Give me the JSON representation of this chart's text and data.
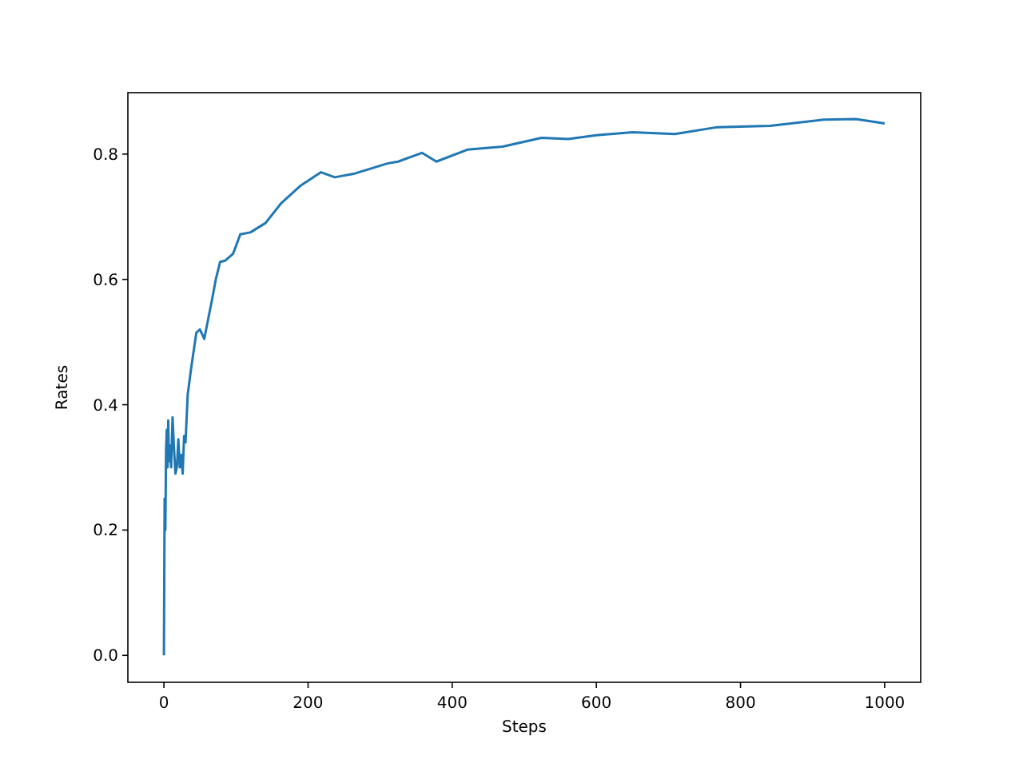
{
  "chart_data": {
    "type": "line",
    "xlabel": "Steps",
    "ylabel": "Rates",
    "xlim": [
      -50,
      1050
    ],
    "ylim": [
      -0.043,
      0.898
    ],
    "xticks": [
      0,
      200,
      400,
      600,
      800,
      1000
    ],
    "yticks": [
      {
        "value": 0,
        "label": "0.0"
      },
      0.2,
      0.4,
      0.6,
      0.8
    ],
    "series": [
      {
        "color": "#1f77b4",
        "x": [
          0,
          1,
          2,
          3,
          4,
          5,
          6,
          7,
          8,
          10,
          12,
          14,
          16,
          18,
          20,
          22,
          24,
          26,
          28,
          30,
          33,
          38,
          45,
          50,
          56,
          62,
          67,
          72,
          78,
          85,
          96,
          106,
          120,
          141,
          163,
          189,
          218,
          237,
          265,
          310,
          325,
          358,
          378,
          421,
          470,
          524,
          561,
          600,
          650,
          709,
          768,
          841,
          915,
          960,
          1000
        ],
        "values": [
          0,
          0.25,
          0.2,
          0.33,
          0.36,
          0.3,
          0.375,
          0.31,
          0.335,
          0.3,
          0.38,
          0.33,
          0.29,
          0.3,
          0.345,
          0.3,
          0.32,
          0.29,
          0.35,
          0.34,
          0.416,
          0.46,
          0.515,
          0.52,
          0.505,
          0.54,
          0.569,
          0.6,
          0.628,
          0.63,
          0.641,
          0.672,
          0.675,
          0.69,
          0.722,
          0.749,
          0.771,
          0.763,
          0.769,
          0.785,
          0.788,
          0.802,
          0.788,
          0.807,
          0.812,
          0.826,
          0.824,
          0.83,
          0.835,
          0.832,
          0.843,
          0.845,
          0.855,
          0.856,
          0.849
        ]
      }
    ]
  }
}
